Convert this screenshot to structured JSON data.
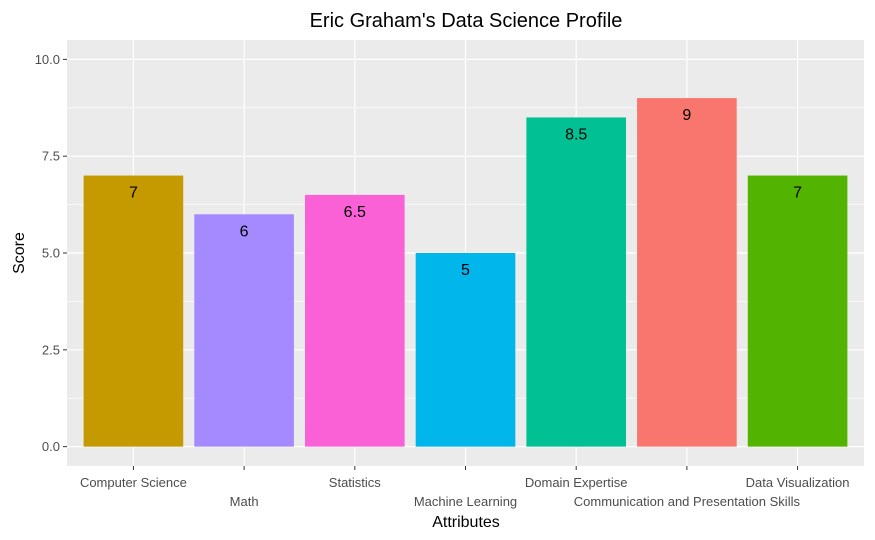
{
  "chart_data": {
    "type": "bar",
    "title": "Eric Graham's Data Science Profile",
    "xlabel": "Attributes",
    "ylabel": "Score",
    "categories": [
      "Computer Science",
      "Math",
      "Statistics",
      "Machine Learning",
      "Domain Expertise",
      "Communication and Presentation Skills",
      "Data Visualization"
    ],
    "values": [
      7,
      6,
      6.5,
      5,
      8.5,
      9,
      7
    ],
    "data_labels": [
      "7",
      "6",
      "6.5",
      "5",
      "8.5",
      "9",
      "7"
    ],
    "colors": [
      "#C49A00",
      "#A58AFF",
      "#FB61D7",
      "#00B6EB",
      "#00C094",
      "#F8766D",
      "#53B400"
    ],
    "ylim": [
      0,
      10
    ],
    "yticks": [
      0,
      2.5,
      5,
      7.5,
      10
    ],
    "ytick_labels": [
      "0.0",
      "2.5",
      "5.0",
      "7.5",
      "10.0"
    ],
    "grid": true,
    "legend": "none",
    "panel_background": "#EBEBEB",
    "grid_color": "#FFFFFF"
  }
}
